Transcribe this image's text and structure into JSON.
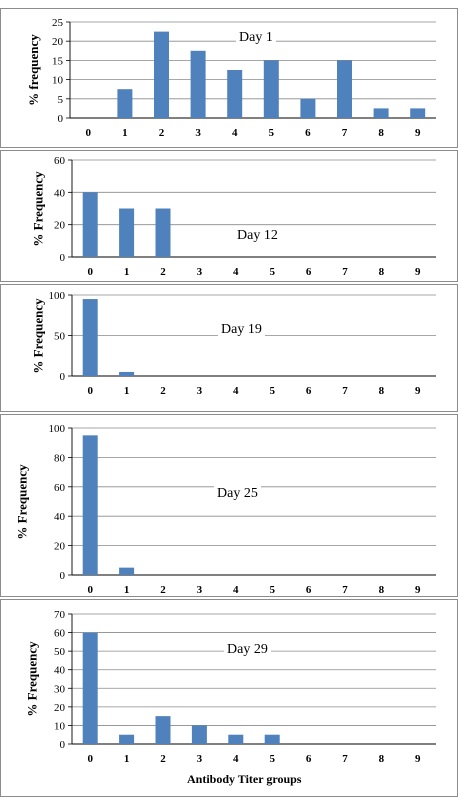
{
  "chart_data": [
    {
      "type": "bar",
      "title": "Day 1",
      "ylabel": "% frequency",
      "xlabel": "",
      "categories": [
        "0",
        "1",
        "2",
        "3",
        "4",
        "5",
        "6",
        "7",
        "8",
        "9"
      ],
      "values": [
        0,
        7.5,
        22.5,
        17.5,
        12.5,
        15,
        5,
        15,
        2.5,
        2.5
      ],
      "ylim": [
        0,
        25
      ],
      "yticks": [
        0,
        5,
        10,
        15,
        20,
        25
      ],
      "grid": true,
      "color": "#4f81bd"
    },
    {
      "type": "bar",
      "title": "Day 12",
      "ylabel": "% Frequency",
      "xlabel": "",
      "categories": [
        "0",
        "1",
        "2",
        "3",
        "4",
        "5",
        "6",
        "7",
        "8",
        "9"
      ],
      "values": [
        40,
        30,
        30,
        0,
        0,
        0,
        0,
        0,
        0,
        0
      ],
      "ylim": [
        0,
        60
      ],
      "yticks": [
        0,
        20,
        40,
        60
      ],
      "grid": true,
      "color": "#4f81bd"
    },
    {
      "type": "bar",
      "title": "Day 19",
      "ylabel": "% Frequency",
      "xlabel": "",
      "categories": [
        "0",
        "1",
        "2",
        "3",
        "4",
        "5",
        "6",
        "7",
        "8",
        "9"
      ],
      "values": [
        95,
        5,
        0,
        0,
        0,
        0,
        0,
        0,
        0,
        0
      ],
      "ylim": [
        0,
        100
      ],
      "yticks": [
        0,
        50,
        100
      ],
      "grid": true,
      "color": "#4f81bd"
    },
    {
      "type": "bar",
      "title": "Day 25",
      "ylabel": "% Frequency",
      "xlabel": "",
      "categories": [
        "0",
        "1",
        "2",
        "3",
        "4",
        "5",
        "6",
        "7",
        "8",
        "9"
      ],
      "values": [
        95,
        5,
        0,
        0,
        0,
        0,
        0,
        0,
        0,
        0
      ],
      "ylim": [
        0,
        100
      ],
      "yticks": [
        0,
        20,
        40,
        60,
        80,
        100
      ],
      "grid": true,
      "color": "#4f81bd"
    },
    {
      "type": "bar",
      "title": "Day 29",
      "ylabel": "% Frequency",
      "xlabel": "Antibody Titer groups",
      "categories": [
        "0",
        "1",
        "2",
        "3",
        "4",
        "5",
        "6",
        "7",
        "8",
        "9"
      ],
      "values": [
        60,
        5,
        15,
        10,
        5,
        5,
        0,
        0,
        0,
        0
      ],
      "ylim": [
        0,
        70
      ],
      "yticks": [
        0,
        10,
        20,
        30,
        40,
        50,
        60,
        70
      ],
      "grid": true,
      "color": "#4f81bd"
    }
  ]
}
